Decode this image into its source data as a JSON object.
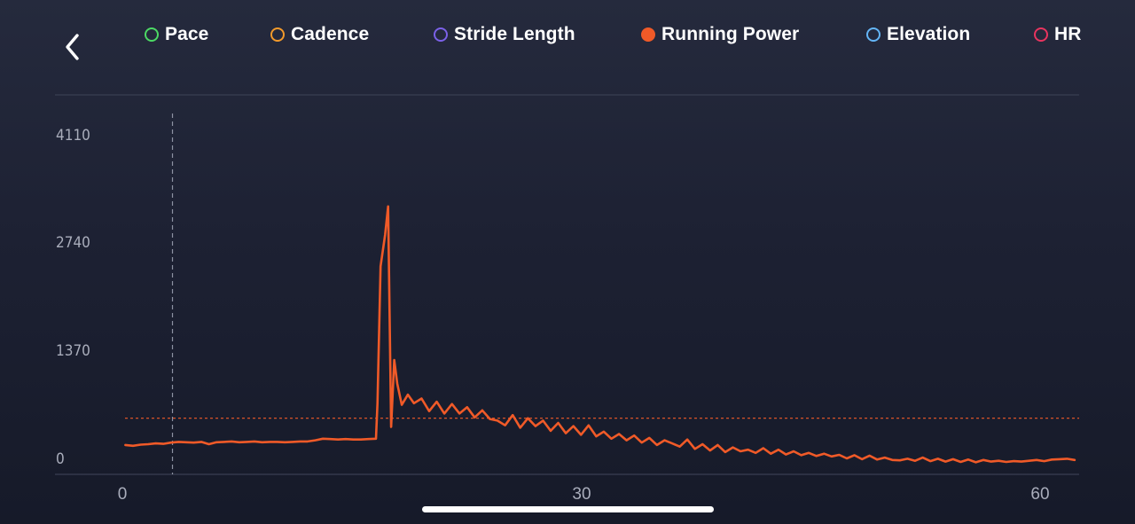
{
  "header": {
    "back_icon": "chevron-left-icon"
  },
  "legend": [
    {
      "key": "pace",
      "label": "Pace",
      "color": "#4cd964",
      "active": false
    },
    {
      "key": "cadence",
      "label": "Cadence",
      "color": "#f39a2b",
      "active": false
    },
    {
      "key": "stride_length",
      "label": "Stride Length",
      "color": "#7b61e8",
      "active": false
    },
    {
      "key": "running_power",
      "label": "Running Power",
      "color": "#f05a28",
      "active": true
    },
    {
      "key": "elevation",
      "label": "Elevation",
      "color": "#64b5f6",
      "active": false
    },
    {
      "key": "hr",
      "label": "HR",
      "color": "#e8345f",
      "active": false
    }
  ],
  "colors": {
    "background_top": "#252a3d",
    "background_bottom": "#161a29",
    "series": "#f05a28",
    "grid": "#3a3f52",
    "tick_text": "#a9adbb",
    "cursor": "#8d92a3"
  },
  "chart_data": {
    "type": "line",
    "title": "",
    "xlabel": "",
    "ylabel": "",
    "xlim": [
      -0.2,
      62.8
    ],
    "ylim": [
      0,
      4110
    ],
    "x_ticks": [
      "0",
      "30",
      "60"
    ],
    "y_ticks": [
      "4110",
      "2740",
      "1370",
      "0"
    ],
    "average_line": 510,
    "cursor_x": 3.1,
    "series": [
      {
        "name": "Running Power",
        "x": [
          0,
          0.5,
          1,
          1.5,
          2,
          2.5,
          3,
          3.5,
          4,
          4.5,
          5,
          5.5,
          6,
          6.5,
          7,
          7.5,
          8,
          8.5,
          9,
          9.5,
          10,
          10.5,
          11,
          11.5,
          12,
          12.5,
          13,
          13.5,
          14,
          14.5,
          15,
          15.5,
          16,
          16.5,
          16.6,
          16.8,
          17.1,
          17.3,
          17.5,
          17.7,
          17.9,
          18.2,
          18.6,
          19,
          19.5,
          20,
          20.5,
          21,
          21.5,
          22,
          22.5,
          23,
          23.5,
          24,
          24.5,
          25,
          25.5,
          26,
          26.5,
          27,
          27.5,
          28,
          28.5,
          29,
          29.5,
          30,
          30.5,
          31,
          31.5,
          32,
          32.5,
          33,
          33.5,
          34,
          34.5,
          35,
          35.5,
          36,
          36.5,
          37,
          37.5,
          38,
          38.5,
          39,
          39.5,
          40,
          40.5,
          41,
          41.5,
          42,
          42.5,
          43,
          43.5,
          44,
          44.5,
          45,
          45.5,
          46,
          46.5,
          47,
          47.5,
          48,
          48.5,
          49,
          49.5,
          50,
          50.5,
          51,
          51.5,
          52,
          52.5,
          53,
          53.5,
          54,
          54.5,
          55,
          55.5,
          56,
          56.5,
          57,
          57.5,
          58,
          58.5,
          59,
          59.5,
          60,
          60.5,
          61,
          61.5,
          62,
          62.5
        ],
        "values": [
          170,
          160,
          175,
          180,
          190,
          185,
          200,
          210,
          205,
          200,
          210,
          180,
          205,
          210,
          215,
          205,
          210,
          215,
          205,
          210,
          210,
          205,
          210,
          215,
          215,
          230,
          250,
          245,
          240,
          245,
          240,
          240,
          245,
          250,
          700,
          2440,
          2840,
          3200,
          400,
          1250,
          950,
          680,
          810,
          700,
          760,
          600,
          720,
          570,
          690,
          570,
          650,
          520,
          610,
          500,
          480,
          420,
          550,
          390,
          510,
          410,
          480,
          350,
          450,
          320,
          410,
          300,
          420,
          280,
          340,
          250,
          310,
          230,
          290,
          200,
          260,
          170,
          230,
          190,
          150,
          240,
          120,
          180,
          100,
          170,
          80,
          140,
          90,
          110,
          70,
          130,
          60,
          110,
          50,
          90,
          40,
          70,
          30,
          60,
          25,
          45,
          0,
          40,
          -10,
          35,
          -15,
          10,
          -20,
          -25,
          -5,
          -30,
          10,
          -35,
          -5,
          -40,
          -10,
          -45,
          -15,
          -50,
          -20,
          -40,
          -30,
          -45,
          -35,
          -40,
          -30,
          -20,
          -35,
          -15,
          -10,
          -5,
          -20
        ]
      }
    ]
  }
}
